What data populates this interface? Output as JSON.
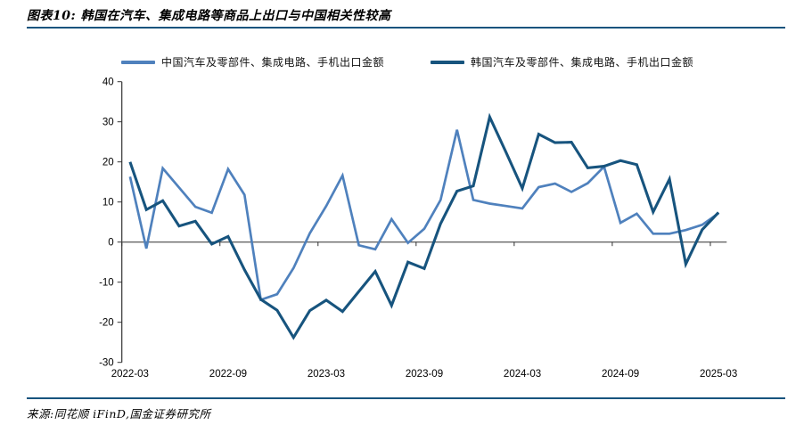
{
  "header": {
    "title": "图表10: 韩国在汽车、集成电路等商品上出口与中国相关性较高"
  },
  "legend": [
    {
      "label": "中国汽车及零部件、集成电路、手机出口金额",
      "color": "#4F81BD"
    },
    {
      "label": "韩国汽车及零部件、集成电路、手机出口金额",
      "color": "#17547E"
    }
  ],
  "footer": {
    "source": "来源:同花顺 iFinD,国金证券研究所"
  },
  "colors": {
    "china_line": "#4F81BD",
    "korea_line": "#17547E",
    "rule": "#17547E",
    "zero_line": "#666666",
    "axis": "#333333"
  },
  "chart_data": {
    "type": "line",
    "title": "",
    "xlabel": "",
    "ylabel": "",
    "ylim": [
      -30,
      40
    ],
    "y_ticks": [
      40,
      30,
      20,
      10,
      0,
      -10,
      -20,
      -30
    ],
    "x_tick_labels": [
      "2022-03",
      "2022-09",
      "2023-03",
      "2023-09",
      "2024-03",
      "2024-09",
      "2025-03"
    ],
    "x_tick_indices": [
      0,
      6,
      12,
      18,
      24,
      30,
      36
    ],
    "grid": "zero-line-only",
    "legend_position": "top",
    "categories": [
      "2022-03",
      "2022-04",
      "2022-05",
      "2022-06",
      "2022-07",
      "2022-08",
      "2022-09",
      "2022-10",
      "2022-11",
      "2022-12",
      "2023-01",
      "2023-02",
      "2023-03",
      "2023-04",
      "2023-05",
      "2023-06",
      "2023-07",
      "2023-08",
      "2023-09",
      "2023-10",
      "2023-11",
      "2023-12",
      "2024-01",
      "2024-02",
      "2024-03",
      "2024-04",
      "2024-05",
      "2024-06",
      "2024-07",
      "2024-08",
      "2024-09",
      "2024-10",
      "2024-11",
      "2024-12",
      "2025-01",
      "2025-02",
      "2025-03"
    ],
    "series": [
      {
        "name": "中国汽车及零部件、集成电路、手机出口金额",
        "color": "#4F81BD",
        "width": 2.7,
        "values": [
          16.3,
          -1.6,
          18.4,
          13.6,
          8.8,
          7.3,
          18.2,
          11.8,
          -14.4,
          -13.0,
          -6.5,
          2.2,
          9.0,
          16.6,
          -0.8,
          -1.8,
          5.7,
          -0.2,
          3.3,
          10.5,
          28.0,
          10.5,
          9.6,
          9.0,
          8.4,
          13.7,
          14.6,
          12.5,
          14.7,
          18.8,
          4.8,
          7.1,
          2.1,
          2.1,
          3.0,
          4.3,
          7.2
        ]
      },
      {
        "name": "韩国汽车及零部件、集成电路、手机出口金额",
        "color": "#17547E",
        "width": 3.1,
        "values": [
          20.0,
          8.1,
          10.3,
          4.0,
          5.2,
          -0.5,
          1.4,
          -6.9,
          -14.3,
          -17.0,
          -23.8,
          -17.1,
          -14.5,
          -17.3,
          -12.3,
          -7.3,
          -15.8,
          -5.0,
          -6.6,
          4.6,
          12.7,
          14.0,
          31.2,
          22.4,
          13.4,
          26.9,
          24.8,
          24.9,
          18.5,
          18.9,
          20.3,
          19.3,
          7.5,
          15.7,
          -5.5,
          3.1,
          7.4
        ]
      }
    ]
  }
}
